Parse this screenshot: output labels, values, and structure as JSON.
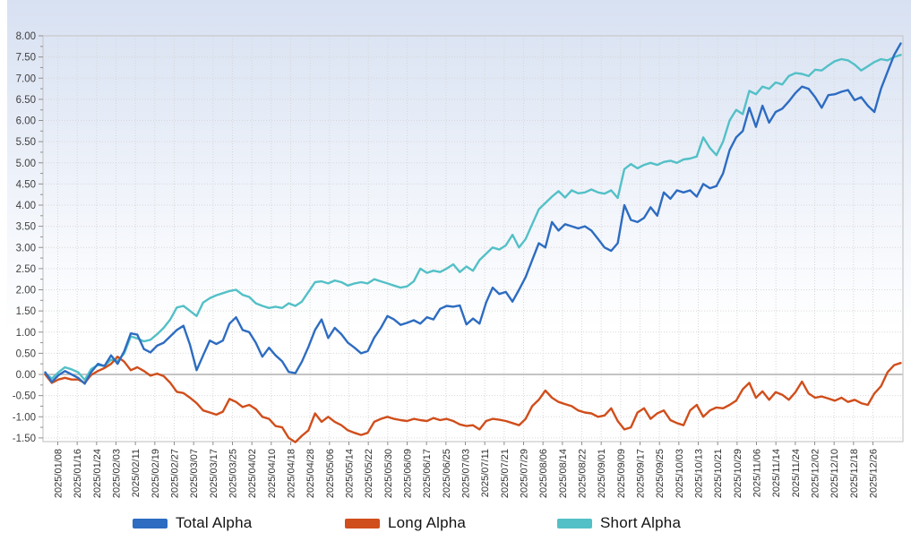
{
  "chart_data": {
    "type": "line",
    "title": "",
    "xlabel": "",
    "ylabel": "",
    "grid": true,
    "legend_position": "bottom",
    "ylim": [
      -1.59,
      8.0
    ],
    "y_tick_step": 0.5,
    "y_tick_labels": [
      "8.00",
      "7.50",
      "7.00",
      "6.50",
      "6.00",
      "5.50",
      "5.00",
      "4.50",
      "4.00",
      "3.50",
      "3.00",
      "2.50",
      "2.00",
      "1.50",
      "1.00",
      "0.50",
      "0.00",
      "-0.50",
      "-1.00",
      "-1.50"
    ],
    "x_tick_labels": [
      "2025/01/08",
      "2025/01/16",
      "2025/01/24",
      "2025/02/03",
      "2025/02/11",
      "2025/02/19",
      "2025/02/27",
      "2025/03/07",
      "2025/03/17",
      "2025/03/25",
      "2025/04/02",
      "2025/04/10",
      "2025/04/18",
      "2025/04/28",
      "2025/05/06",
      "2025/05/14",
      "2025/05/22",
      "2025/05/30",
      "2025/06/09",
      "2025/06/17",
      "2025/06/25",
      "2025/07/03",
      "2025/07/11",
      "2025/07/21",
      "2025/07/29",
      "2025/08/06",
      "2025/08/14",
      "2025/08/22",
      "2025/09/01",
      "2025/09/09",
      "2025/09/17",
      "2025/09/25",
      "2025/10/03",
      "2025/10/13",
      "2025/10/21",
      "2025/10/29",
      "2025/11/06",
      "2025/11/14",
      "2025/11/24",
      "2025/12/02",
      "2025/12/10",
      "2025/12/18",
      "2025/12/26"
    ],
    "axis_color": "#c9c9c9",
    "gridline_color": "#d7d7d7",
    "zero_line_color": "#b0b0b0",
    "label_color": "#3f3f3f",
    "series": [
      {
        "name": "Total Alpha",
        "color": "#2d6cc1",
        "values": [
          0.05,
          -0.18,
          -0.02,
          0.08,
          0.0,
          -0.08,
          -0.22,
          0.06,
          0.25,
          0.2,
          0.45,
          0.25,
          0.55,
          0.97,
          0.94,
          0.6,
          0.52,
          0.68,
          0.75,
          0.9,
          1.05,
          1.15,
          0.7,
          0.1,
          0.45,
          0.8,
          0.72,
          0.8,
          1.2,
          1.35,
          1.05,
          1.0,
          0.75,
          0.42,
          0.63,
          0.45,
          0.31,
          0.06,
          0.03,
          0.3,
          0.65,
          1.05,
          1.3,
          0.86,
          1.1,
          0.95,
          0.75,
          0.63,
          0.5,
          0.55,
          0.87,
          1.1,
          1.38,
          1.3,
          1.17,
          1.22,
          1.28,
          1.2,
          1.35,
          1.3,
          1.55,
          1.62,
          1.6,
          1.63,
          1.18,
          1.32,
          1.2,
          1.7,
          2.05,
          1.9,
          1.95,
          1.72,
          2.0,
          2.3,
          2.7,
          3.1,
          3.0,
          3.6,
          3.4,
          3.55,
          3.5,
          3.45,
          3.5,
          3.4,
          3.2,
          3.0,
          2.92,
          3.1,
          4.0,
          3.65,
          3.6,
          3.7,
          3.95,
          3.75,
          4.3,
          4.15,
          4.35,
          4.3,
          4.35,
          4.2,
          4.5,
          4.4,
          4.45,
          4.75,
          5.3,
          5.6,
          5.75,
          6.3,
          5.85,
          6.35,
          5.95,
          6.2,
          6.28,
          6.45,
          6.65,
          6.8,
          6.75,
          6.55,
          6.3,
          6.6,
          6.62,
          6.68,
          6.72,
          6.48,
          6.55,
          6.35,
          6.2,
          6.75,
          7.15,
          7.55,
          7.82
        ]
      },
      {
        "name": "Long Alpha",
        "color": "#d04e1b",
        "values": [
          0.0,
          -0.2,
          -0.12,
          -0.08,
          -0.12,
          -0.12,
          -0.2,
          -0.01,
          0.08,
          0.15,
          0.25,
          0.42,
          0.3,
          0.1,
          0.17,
          0.08,
          -0.03,
          0.02,
          -0.04,
          -0.2,
          -0.41,
          -0.44,
          -0.55,
          -0.68,
          -0.85,
          -0.9,
          -0.95,
          -0.88,
          -0.58,
          -0.65,
          -0.77,
          -0.72,
          -0.82,
          -1.0,
          -1.05,
          -1.22,
          -1.25,
          -1.5,
          -1.6,
          -1.45,
          -1.32,
          -0.92,
          -1.12,
          -1.0,
          -1.12,
          -1.2,
          -1.32,
          -1.38,
          -1.43,
          -1.38,
          -1.12,
          -1.05,
          -1.0,
          -1.05,
          -1.08,
          -1.1,
          -1.05,
          -1.08,
          -1.1,
          -1.03,
          -1.08,
          -1.05,
          -1.1,
          -1.18,
          -1.22,
          -1.2,
          -1.3,
          -1.1,
          -1.05,
          -1.07,
          -1.1,
          -1.15,
          -1.2,
          -1.05,
          -0.75,
          -0.6,
          -0.38,
          -0.55,
          -0.65,
          -0.7,
          -0.75,
          -0.85,
          -0.9,
          -0.92,
          -1.0,
          -0.97,
          -0.8,
          -1.1,
          -1.3,
          -1.25,
          -0.9,
          -0.8,
          -1.05,
          -0.92,
          -0.85,
          -1.08,
          -1.15,
          -1.2,
          -0.85,
          -0.72,
          -1.0,
          -0.85,
          -0.78,
          -0.8,
          -0.72,
          -0.62,
          -0.35,
          -0.2,
          -0.55,
          -0.4,
          -0.6,
          -0.42,
          -0.48,
          -0.6,
          -0.42,
          -0.17,
          -0.45,
          -0.55,
          -0.52,
          -0.57,
          -0.62,
          -0.55,
          -0.65,
          -0.6,
          -0.68,
          -0.72,
          -0.45,
          -0.28,
          0.05,
          0.22,
          0.27
        ]
      },
      {
        "name": "Short Alpha",
        "color": "#53c0c7",
        "values": [
          0.03,
          -0.1,
          0.05,
          0.17,
          0.12,
          0.05,
          -0.13,
          0.13,
          0.22,
          0.2,
          0.35,
          0.32,
          0.5,
          0.9,
          0.85,
          0.78,
          0.82,
          0.95,
          1.1,
          1.3,
          1.58,
          1.62,
          1.5,
          1.38,
          1.7,
          1.8,
          1.87,
          1.92,
          1.97,
          2.0,
          1.88,
          1.83,
          1.68,
          1.62,
          1.57,
          1.6,
          1.57,
          1.68,
          1.62,
          1.72,
          1.95,
          2.18,
          2.2,
          2.15,
          2.22,
          2.18,
          2.1,
          2.15,
          2.18,
          2.15,
          2.25,
          2.2,
          2.15,
          2.1,
          2.05,
          2.08,
          2.2,
          2.5,
          2.4,
          2.45,
          2.42,
          2.5,
          2.6,
          2.42,
          2.55,
          2.45,
          2.7,
          2.85,
          3.0,
          2.95,
          3.05,
          3.3,
          3.0,
          3.2,
          3.55,
          3.9,
          4.05,
          4.2,
          4.33,
          4.18,
          4.35,
          4.28,
          4.3,
          4.37,
          4.3,
          4.27,
          4.35,
          4.17,
          4.85,
          4.97,
          4.87,
          4.95,
          5.0,
          4.95,
          5.02,
          5.05,
          5.0,
          5.08,
          5.1,
          5.15,
          5.6,
          5.35,
          5.18,
          5.5,
          6.0,
          6.25,
          6.15,
          6.7,
          6.62,
          6.8,
          6.75,
          6.9,
          6.85,
          7.05,
          7.12,
          7.1,
          7.05,
          7.2,
          7.18,
          7.3,
          7.4,
          7.45,
          7.42,
          7.32,
          7.18,
          7.28,
          7.38,
          7.45,
          7.42,
          7.5,
          7.55
        ]
      }
    ]
  },
  "legend": {
    "entries": [
      "Total Alpha",
      "Long Alpha",
      "Short Alpha"
    ]
  }
}
